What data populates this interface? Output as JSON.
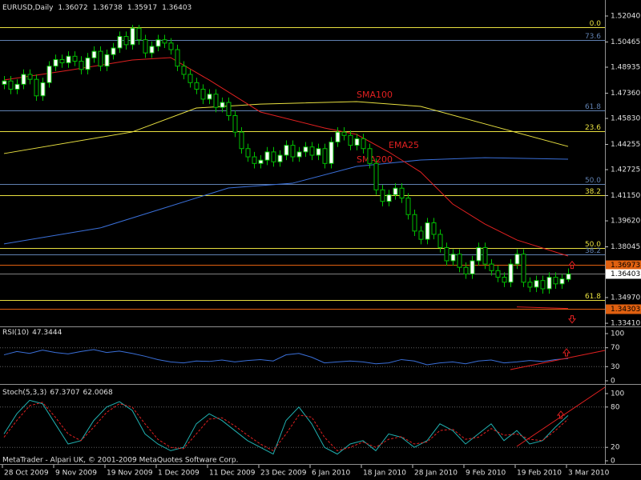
{
  "price_panel": {
    "symbol": "EURUSD,Daily",
    "ylim": [
      1.3322,
      1.5301
    ],
    "yticks": [
      {
        "value": 1.5204,
        "label": "1.52040"
      },
      {
        "value": 1.50465,
        "label": "1.50465"
      },
      {
        "value": 1.48935,
        "label": "1.48935"
      },
      {
        "value": 1.4736,
        "label": "1.47360"
      },
      {
        "value": 1.4583,
        "label": "1.45830"
      },
      {
        "value": 1.44255,
        "label": "1.44255"
      },
      {
        "value": 1.42725,
        "label": "1.42725"
      },
      {
        "value": 1.4115,
        "label": "1.41150"
      },
      {
        "value": 1.3962,
        "label": "1.39620"
      },
      {
        "value": 1.38045,
        "label": "1.38045"
      },
      {
        "value": 1.3497,
        "label": "1.34970"
      },
      {
        "value": 1.3341,
        "label": "1.33410"
      }
    ],
    "candles": [
      [
        1.479,
        1.484,
        1.476,
        1.481
      ],
      [
        1.481,
        1.484,
        1.473,
        1.476
      ],
      [
        1.476,
        1.482,
        1.473,
        1.479
      ],
      [
        1.479,
        1.488,
        1.476,
        1.485
      ],
      [
        1.485,
        1.488,
        1.479,
        1.482
      ],
      [
        1.482,
        1.485,
        1.469,
        1.472
      ],
      [
        1.472,
        1.483,
        1.469,
        1.48
      ],
      [
        1.48,
        1.493,
        1.477,
        1.49
      ],
      [
        1.49,
        1.497,
        1.487,
        1.494
      ],
      [
        1.494,
        1.497,
        1.489,
        1.492
      ],
      [
        1.492,
        1.499,
        1.489,
        1.496
      ],
      [
        1.496,
        1.499,
        1.49,
        1.493
      ],
      [
        1.493,
        1.496,
        1.485,
        1.488
      ],
      [
        1.488,
        1.498,
        1.485,
        1.495
      ],
      [
        1.495,
        1.502,
        1.492,
        1.499
      ],
      [
        1.499,
        1.502,
        1.487,
        1.49
      ],
      [
        1.49,
        1.5,
        1.487,
        1.497
      ],
      [
        1.497,
        1.504,
        1.494,
        1.501
      ],
      [
        1.501,
        1.511,
        1.498,
        1.508
      ],
      [
        1.508,
        1.511,
        1.5,
        1.503
      ],
      [
        1.503,
        1.515,
        1.5,
        1.513
      ],
      [
        1.513,
        1.515,
        1.503,
        1.506
      ],
      [
        1.506,
        1.509,
        1.495,
        1.498
      ],
      [
        1.498,
        1.505,
        1.495,
        1.502
      ],
      [
        1.502,
        1.509,
        1.499,
        1.506
      ],
      [
        1.506,
        1.509,
        1.501,
        1.504
      ],
      [
        1.504,
        1.507,
        1.497,
        1.5
      ],
      [
        1.5,
        1.503,
        1.487,
        1.49
      ],
      [
        1.49,
        1.493,
        1.482,
        1.485
      ],
      [
        1.485,
        1.488,
        1.477,
        1.48
      ],
      [
        1.48,
        1.483,
        1.473,
        1.476
      ],
      [
        1.476,
        1.479,
        1.467,
        1.47
      ],
      [
        1.47,
        1.476,
        1.467,
        1.473
      ],
      [
        1.473,
        1.476,
        1.462,
        1.465
      ],
      [
        1.465,
        1.471,
        1.462,
        1.468
      ],
      [
        1.468,
        1.471,
        1.457,
        1.46
      ],
      [
        1.46,
        1.463,
        1.447,
        1.45
      ],
      [
        1.45,
        1.453,
        1.437,
        1.44
      ],
      [
        1.44,
        1.443,
        1.432,
        1.435
      ],
      [
        1.435,
        1.438,
        1.428,
        1.431
      ],
      [
        1.431,
        1.436,
        1.428,
        1.433
      ],
      [
        1.433,
        1.441,
        1.43,
        1.438
      ],
      [
        1.438,
        1.441,
        1.429,
        1.432
      ],
      [
        1.432,
        1.439,
        1.429,
        1.436
      ],
      [
        1.436,
        1.445,
        1.433,
        1.442
      ],
      [
        1.442,
        1.445,
        1.432,
        1.435
      ],
      [
        1.435,
        1.441,
        1.432,
        1.438
      ],
      [
        1.438,
        1.444,
        1.435,
        1.441
      ],
      [
        1.441,
        1.444,
        1.433,
        1.436
      ],
      [
        1.436,
        1.443,
        1.433,
        1.44
      ],
      [
        1.44,
        1.443,
        1.428,
        1.431
      ],
      [
        1.431,
        1.447,
        1.428,
        1.444
      ],
      [
        1.444,
        1.453,
        1.441,
        1.45
      ],
      [
        1.45,
        1.453,
        1.445,
        1.448
      ],
      [
        1.448,
        1.451,
        1.439,
        1.442
      ],
      [
        1.442,
        1.449,
        1.439,
        1.446
      ],
      [
        1.446,
        1.449,
        1.437,
        1.44
      ],
      [
        1.44,
        1.443,
        1.428,
        1.431
      ],
      [
        1.431,
        1.434,
        1.412,
        1.415
      ],
      [
        1.415,
        1.418,
        1.405,
        1.408
      ],
      [
        1.408,
        1.415,
        1.405,
        1.412
      ],
      [
        1.412,
        1.419,
        1.409,
        1.416
      ],
      [
        1.416,
        1.419,
        1.407,
        1.41
      ],
      [
        1.41,
        1.413,
        1.397,
        1.4
      ],
      [
        1.4,
        1.403,
        1.387,
        1.39
      ],
      [
        1.39,
        1.393,
        1.382,
        1.385
      ],
      [
        1.385,
        1.398,
        1.382,
        1.395
      ],
      [
        1.395,
        1.398,
        1.385,
        1.388
      ],
      [
        1.388,
        1.391,
        1.377,
        1.38
      ],
      [
        1.38,
        1.383,
        1.369,
        1.372
      ],
      [
        1.372,
        1.379,
        1.369,
        1.376
      ],
      [
        1.376,
        1.379,
        1.365,
        1.368
      ],
      [
        1.368,
        1.371,
        1.361,
        1.364
      ],
      [
        1.364,
        1.375,
        1.361,
        1.372
      ],
      [
        1.372,
        1.383,
        1.369,
        1.38
      ],
      [
        1.38,
        1.383,
        1.367,
        1.37
      ],
      [
        1.37,
        1.373,
        1.363,
        1.366
      ],
      [
        1.366,
        1.369,
        1.359,
        1.362
      ],
      [
        1.362,
        1.365,
        1.356,
        1.359
      ],
      [
        1.359,
        1.373,
        1.356,
        1.37
      ],
      [
        1.37,
        1.379,
        1.367,
        1.376
      ],
      [
        1.376,
        1.379,
        1.356,
        1.359
      ],
      [
        1.359,
        1.362,
        1.353,
        1.356
      ],
      [
        1.356,
        1.363,
        1.353,
        1.36
      ],
      [
        1.36,
        1.363,
        1.352,
        1.355
      ],
      [
        1.355,
        1.365,
        1.352,
        1.362
      ],
      [
        1.362,
        1.365,
        1.355,
        1.358
      ],
      [
        1.358,
        1.364,
        1.355,
        1.361
      ],
      [
        1.36072,
        1.36738,
        1.35917,
        1.36403
      ]
    ],
    "moving_averages": [
      {
        "name": "SMA100",
        "color": "#e8e040",
        "bars": [
          0,
          20,
          30,
          40,
          55,
          65,
          75,
          88
        ],
        "values": [
          1.437,
          1.4501,
          1.4646,
          1.467,
          1.4685,
          1.4656,
          1.455,
          1.4413
        ]
      },
      {
        "name": "SMA200",
        "color": "#3a6fd8",
        "bars": [
          0,
          15,
          25,
          35,
          45,
          55,
          65,
          75,
          88
        ],
        "values": [
          1.3822,
          1.3919,
          1.404,
          1.4161,
          1.419,
          1.4292,
          1.4331,
          1.4345,
          1.4336
        ]
      },
      {
        "name": "EMA25",
        "color": "#e02020",
        "bars": [
          0,
          10,
          20,
          26,
          32,
          40,
          50,
          55,
          60,
          65,
          70,
          75,
          80,
          88
        ],
        "values": [
          1.4816,
          1.4874,
          1.4937,
          1.4952,
          1.4816,
          1.4622,
          1.4525,
          1.4486,
          1.438,
          1.4258,
          1.4064,
          1.3943,
          1.3846,
          1.3749
        ]
      }
    ],
    "fib_levels": [
      {
        "label": "0.0",
        "value": 1.5136,
        "color": "#e8e040"
      },
      {
        "label": "23.6",
        "value": 1.4506,
        "color": "#e8e040"
      },
      {
        "label": "38.2",
        "value": 1.4118,
        "color": "#e8e040"
      },
      {
        "label": "50.0",
        "value": 1.3797,
        "color": "#e8e040"
      },
      {
        "label": "61.8",
        "value": 1.3482,
        "color": "#e8e040"
      },
      {
        "label": "73.6",
        "value": 1.5059,
        "color": "#6080b0"
      },
      {
        "label": "61.8",
        "value": 1.4632,
        "color": "#6080b0"
      },
      {
        "label": "50.0",
        "value": 1.4185,
        "color": "#6080b0"
      },
      {
        "label": "38.2",
        "value": 1.3759,
        "color": "#6080b0"
      }
    ],
    "alert_levels": [
      1.36973,
      1.34303
    ]
  },
  "rsi_panel": {
    "label": "RSI(10)",
    "ylim": [
      0,
      100
    ],
    "yticks": [
      100,
      70,
      30,
      0
    ],
    "values": [
      55,
      62,
      58,
      65,
      60,
      57,
      62,
      66,
      60,
      63,
      58,
      52,
      45,
      40,
      38,
      42,
      41,
      44,
      40,
      43,
      45,
      42,
      55,
      58,
      50,
      38,
      40,
      42,
      40,
      36,
      38,
      45,
      42,
      34,
      38,
      40,
      36,
      42,
      44,
      38,
      40,
      43,
      41,
      45,
      47.3444
    ]
  },
  "stoch_panel": {
    "label": "Stoch(5,3,3)",
    "ylim": [
      0,
      100
    ],
    "yticks": [
      100,
      80,
      20,
      0
    ],
    "main": [
      40,
      70,
      90,
      85,
      55,
      25,
      30,
      60,
      80,
      88,
      75,
      40,
      25,
      15,
      20,
      55,
      70,
      60,
      45,
      30,
      20,
      10,
      60,
      80,
      55,
      20,
      10,
      25,
      30,
      15,
      40,
      35,
      20,
      30,
      55,
      45,
      25,
      40,
      55,
      30,
      45,
      25,
      30,
      50,
      67.3707
    ],
    "signal": [
      35,
      60,
      82,
      87,
      65,
      40,
      30,
      50,
      72,
      85,
      80,
      55,
      32,
      20,
      18,
      40,
      62,
      64,
      52,
      38,
      25,
      15,
      40,
      68,
      65,
      35,
      15,
      20,
      28,
      20,
      32,
      36,
      25,
      28,
      45,
      47,
      32,
      35,
      48,
      38,
      40,
      32,
      30,
      45,
      62.0068
    ]
  },
  "dates": [
    "28 Oct 2009",
    "9 Nov 2009",
    "19 Nov 2009",
    "1 Dec 2009",
    "11 Dec 2009",
    "23 Dec 2009",
    "6 Jan 2010",
    "18 Jan 2010",
    "28 Jan 2010",
    "9 Feb 2010",
    "19 Feb 2010",
    "3 Mar 2010"
  ],
  "footer": "MetaTrader - Alpari UK, © 2001-2009 MetaQuotes Software Corp."
}
